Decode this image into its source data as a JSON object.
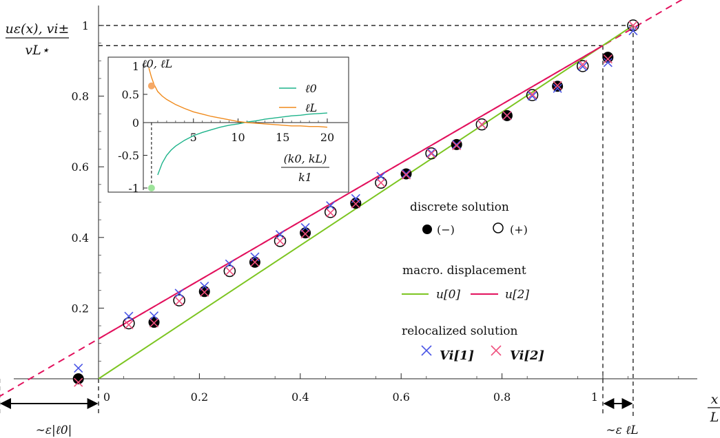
{
  "chart_data": {
    "type": "scatter",
    "main": {
      "xlabel_num": "x",
      "xlabel_den": "L",
      "ylabel_num": "uε(x), vi±",
      "ylabel_den": "vL⋆",
      "xlim": [
        -0.2,
        1.2
      ],
      "ylim": [
        0,
        1.06
      ],
      "xticks": [
        {
          "v": 0,
          "label": "0"
        },
        {
          "v": 0.2,
          "label": "0.2"
        },
        {
          "v": 0.4,
          "label": "0.4"
        },
        {
          "v": 0.6,
          "label": "0.6"
        },
        {
          "v": 0.8,
          "label": "0.8"
        },
        {
          "v": 1,
          "label": "1"
        }
      ],
      "yticks": [
        {
          "v": 0.2,
          "label": "0.2"
        },
        {
          "v": 0.4,
          "label": "0.4"
        },
        {
          "v": 0.6,
          "label": "0.6"
        },
        {
          "v": 0.8,
          "label": "0.8"
        },
        {
          "v": 1,
          "label": "1"
        }
      ],
      "discrete_minus": {
        "x": [
          -0.04,
          0.11,
          0.21,
          0.31,
          0.41,
          0.51,
          0.61,
          0.71,
          0.81,
          0.91,
          1.01
        ],
        "y": [
          0.0,
          0.16,
          0.247,
          0.33,
          0.413,
          0.497,
          0.58,
          0.663,
          0.745,
          0.828,
          0.91
        ]
      },
      "discrete_plus": {
        "x": [
          0.06,
          0.16,
          0.26,
          0.36,
          0.46,
          0.56,
          0.66,
          0.76,
          0.86,
          0.96,
          1.06
        ],
        "y": [
          0.157,
          0.222,
          0.305,
          0.39,
          0.472,
          0.555,
          0.638,
          0.72,
          0.803,
          0.885,
          1.0
        ]
      },
      "relocalized_v1": {
        "x": [
          -0.04,
          0.06,
          0.11,
          0.16,
          0.21,
          0.26,
          0.31,
          0.36,
          0.41,
          0.46,
          0.51,
          0.56,
          0.61,
          0.66,
          0.71,
          0.76,
          0.81,
          0.86,
          0.91,
          0.96,
          1.01,
          1.06
        ],
        "y": [
          0.03,
          0.177,
          0.178,
          0.242,
          0.262,
          0.325,
          0.345,
          0.408,
          0.428,
          0.49,
          0.51,
          0.573,
          0.58,
          0.64,
          0.663,
          0.72,
          0.745,
          0.8,
          0.822,
          0.884,
          0.895,
          0.985
        ]
      },
      "relocalized_v2": {
        "x": [
          -0.04,
          0.06,
          0.11,
          0.16,
          0.21,
          0.26,
          0.31,
          0.36,
          0.41,
          0.46,
          0.51,
          0.56,
          0.61,
          0.66,
          0.71,
          0.76,
          0.81,
          0.86,
          0.91,
          0.96,
          1.01,
          1.06
        ],
        "y": [
          -0.01,
          0.153,
          0.158,
          0.22,
          0.245,
          0.305,
          0.33,
          0.39,
          0.41,
          0.47,
          0.495,
          0.555,
          0.577,
          0.637,
          0.66,
          0.72,
          0.745,
          0.805,
          0.83,
          0.89,
          0.905,
          1.0
        ]
      },
      "u0": {
        "x": [
          0,
          1.06
        ],
        "y": [
          0,
          1.0
        ]
      },
      "u2": {
        "x": [
          0,
          1
        ],
        "y": [
          0.113,
          0.943
        ]
      },
      "u2_dashed": {
        "x": [
          -0.2,
          1.2
        ],
        "y": [
          -0.053,
          1.109
        ]
      },
      "guides": {
        "y_u2_end": 0.943,
        "y_one": 1.0,
        "x_one": 1.0,
        "x_L": 1.06,
        "x_left": -0.2
      },
      "annotations": {
        "left_gap": "∼ε|ℓ0|",
        "right_gap": "∼ε ℓL"
      }
    },
    "legend": {
      "discrete_title": "discrete solution",
      "minus_label": "(−)",
      "plus_label": "(+)",
      "macro_title": "macro. displacement",
      "u0_label": "u[0]",
      "u2_label": "u[2]",
      "reloc_title": "relocalized solution",
      "v1_label": "Vi[1]",
      "v2_label": "Vi[2]"
    },
    "inset": {
      "type": "line",
      "xlabel_num": "(k0, kL)",
      "xlabel_den": "k1",
      "ylabel": "ℓ0, ℓL",
      "xlim": [
        0,
        20.5
      ],
      "ylim": [
        -1.1,
        1.1
      ],
      "xticks": [
        {
          "v": 5,
          "label": "5"
        },
        {
          "v": 10,
          "label": "10"
        },
        {
          "v": 15,
          "label": "15"
        },
        {
          "v": 20,
          "label": "20"
        }
      ],
      "yticks": [
        {
          "v": 1,
          "label": "1"
        },
        {
          "v": 0.5,
          "label": "0.5"
        },
        {
          "v": 0,
          "label": "0"
        },
        {
          "v": -0.5,
          "label": "-0.5"
        },
        {
          "v": -1,
          "label": "-1"
        }
      ],
      "series": [
        {
          "name": "ℓ0",
          "color": "#1db38a",
          "x": [
            1,
            1.5,
            2,
            2.5,
            3,
            4,
            5,
            6,
            7,
            8,
            9,
            10,
            11,
            12,
            13,
            14,
            15,
            16,
            17,
            18,
            19,
            20
          ],
          "y": [
            -0.8,
            -0.62,
            -0.5,
            -0.42,
            -0.36,
            -0.27,
            -0.2,
            -0.15,
            -0.11,
            -0.07,
            -0.04,
            -0.02,
            0.01,
            0.03,
            0.06,
            0.08,
            0.1,
            0.12,
            0.13,
            0.15,
            0.16,
            0.17
          ]
        },
        {
          "name": "ℓL",
          "color": "#f08a1c",
          "x": [
            0,
            0.3,
            0.6,
            1,
            1.5,
            2,
            3,
            4,
            5,
            6,
            7,
            8,
            9,
            10,
            11,
            12,
            13,
            14,
            15,
            16,
            17,
            18,
            19,
            20
          ],
          "y": [
            0.97,
            0.8,
            0.67,
            0.55,
            0.47,
            0.41,
            0.32,
            0.25,
            0.19,
            0.15,
            0.11,
            0.08,
            0.05,
            0.02,
            0.0,
            -0.01,
            -0.02,
            -0.03,
            -0.04,
            -0.05,
            -0.05,
            -0.06,
            -0.06,
            -0.07
          ]
        }
      ],
      "markers": [
        {
          "x": 0.3,
          "y": 0.65,
          "color": "#f5a866"
        },
        {
          "x": 0.3,
          "y": -1.0,
          "color": "#9de39a"
        }
      ]
    },
    "colors": {
      "u0": "#7cc521",
      "u2": "#e2115d",
      "v1": "#4a55e6",
      "v2": "#ef4f7d",
      "ell0": "#1db38a",
      "ellL": "#f08a1c"
    }
  }
}
